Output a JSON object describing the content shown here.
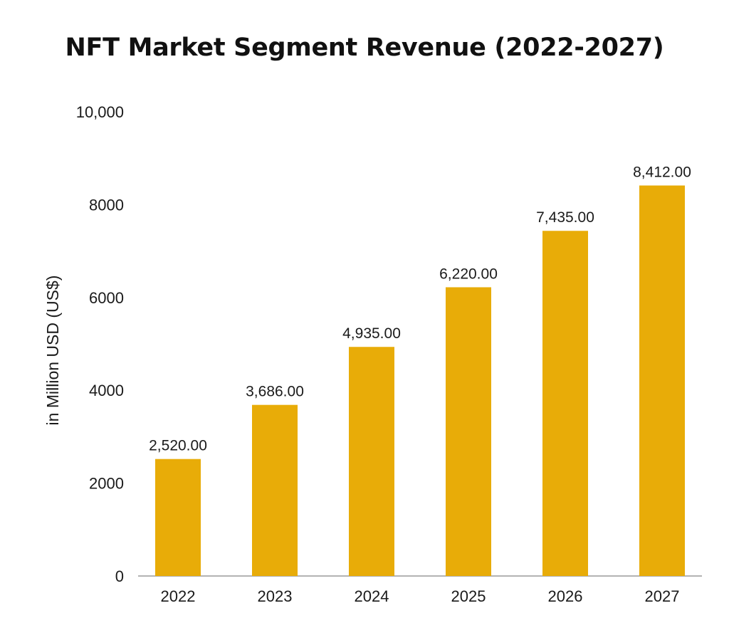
{
  "chart_data": {
    "type": "bar",
    "title": "NFT Market Segment Revenue (2022-2027)",
    "xlabel": "",
    "ylabel": "in Million USD (US$)",
    "categories": [
      "2022",
      "2023",
      "2024",
      "2025",
      "2026",
      "2027"
    ],
    "values": [
      2520,
      3686,
      4935,
      6220,
      7435,
      8412
    ],
    "value_labels": [
      "2,520.00",
      "3,686.00",
      "4,935.00",
      "6,220.00",
      "7,435.00",
      "8,412.00"
    ],
    "yticks": [
      0,
      2000,
      4000,
      6000,
      8000,
      10000
    ],
    "ytick_labels": [
      "0",
      "2000",
      "4000",
      "6000",
      "8000",
      "10,000"
    ],
    "ylim": [
      0,
      10000
    ],
    "grid": false,
    "bar_color": "#E8AC08",
    "axis_color": "#9a9a9a"
  }
}
